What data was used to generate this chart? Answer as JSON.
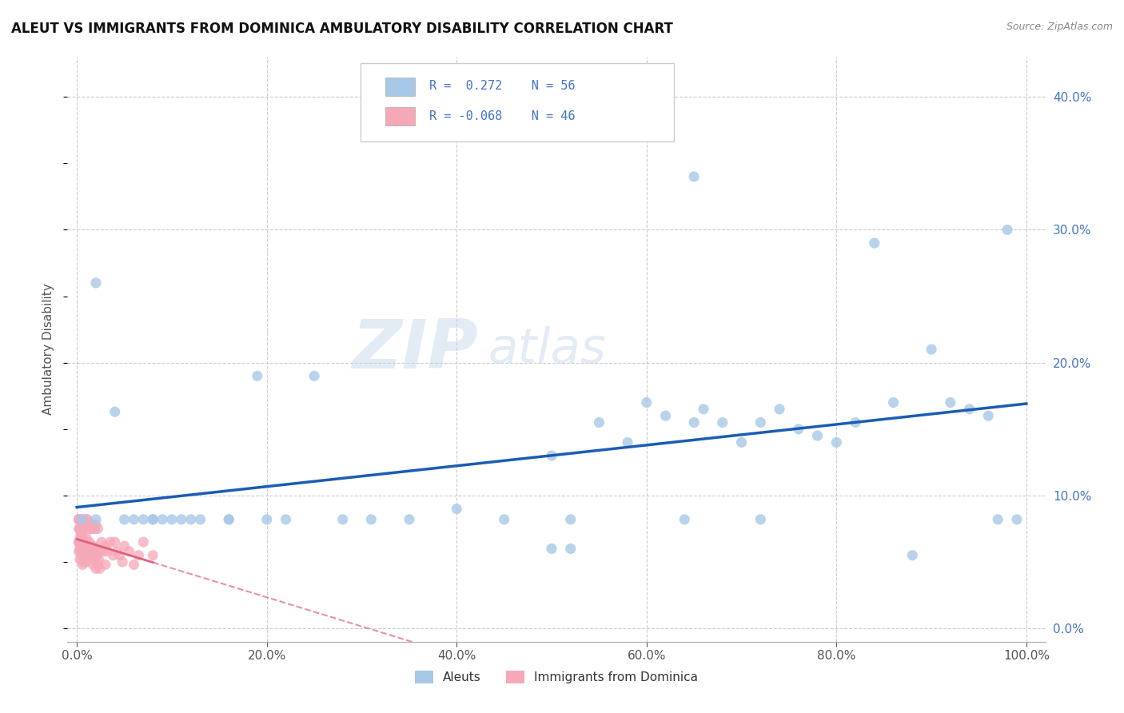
{
  "title": "ALEUT VS IMMIGRANTS FROM DOMINICA AMBULATORY DISABILITY CORRELATION CHART",
  "source": "Source: ZipAtlas.com",
  "xlabel": "",
  "ylabel": "Ambulatory Disability",
  "xlim": [
    -0.01,
    1.02
  ],
  "ylim": [
    -0.01,
    0.43
  ],
  "background_color": "#ffffff",
  "grid_color": "#cccccc",
  "aleut_color": "#a8c8e8",
  "aleut_line_color": "#1a5cb5",
  "dominica_color": "#f5a8b8",
  "dominica_line_color": "#e06080",
  "legend_R1": "0.272",
  "legend_N1": "56",
  "legend_R2": "-0.068",
  "legend_N2": "46",
  "aleut_x": [
    0.005,
    0.02,
    0.04,
    0.06,
    0.07,
    0.08,
    0.09,
    0.1,
    0.11,
    0.13,
    0.16,
    0.19,
    0.22,
    0.25,
    0.28,
    0.31,
    0.35,
    0.4,
    0.45,
    0.5,
    0.52,
    0.55,
    0.58,
    0.6,
    0.62,
    0.64,
    0.65,
    0.66,
    0.68,
    0.7,
    0.72,
    0.74,
    0.76,
    0.78,
    0.8,
    0.82,
    0.84,
    0.86,
    0.88,
    0.9,
    0.92,
    0.94,
    0.96,
    0.97,
    0.98,
    0.99,
    0.02,
    0.05,
    0.08,
    0.12,
    0.16,
    0.2,
    0.5,
    0.52,
    0.65,
    0.72
  ],
  "aleut_y": [
    0.082,
    0.26,
    0.163,
    0.082,
    0.082,
    0.082,
    0.082,
    0.082,
    0.082,
    0.082,
    0.082,
    0.19,
    0.082,
    0.19,
    0.082,
    0.082,
    0.082,
    0.09,
    0.082,
    0.13,
    0.082,
    0.155,
    0.14,
    0.17,
    0.16,
    0.082,
    0.155,
    0.165,
    0.155,
    0.14,
    0.155,
    0.165,
    0.15,
    0.145,
    0.14,
    0.155,
    0.29,
    0.17,
    0.055,
    0.21,
    0.17,
    0.165,
    0.16,
    0.082,
    0.3,
    0.082,
    0.082,
    0.082,
    0.082,
    0.082,
    0.082,
    0.082,
    0.06,
    0.06,
    0.34,
    0.082
  ],
  "dominica_x": [
    0.002,
    0.002,
    0.002,
    0.004,
    0.005,
    0.005,
    0.006,
    0.007,
    0.008,
    0.008,
    0.009,
    0.01,
    0.01,
    0.011,
    0.012,
    0.012,
    0.013,
    0.014,
    0.015,
    0.015,
    0.016,
    0.017,
    0.018,
    0.018,
    0.019,
    0.02,
    0.02,
    0.022,
    0.024,
    0.026,
    0.028,
    0.03,
    0.03,
    0.032,
    0.035,
    0.038,
    0.04,
    0.042,
    0.045,
    0.048,
    0.05,
    0.055,
    0.06,
    0.065,
    0.07,
    0.08
  ],
  "dominica_y": [
    0.082,
    0.082,
    0.065,
    0.082,
    0.082,
    0.065,
    0.075,
    0.065,
    0.082,
    0.06,
    0.078,
    0.082,
    0.065,
    0.082,
    0.078,
    0.062,
    0.075,
    0.058,
    0.075,
    0.06,
    0.078,
    0.062,
    0.075,
    0.058,
    0.075,
    0.078,
    0.06,
    0.075,
    0.058,
    0.065,
    0.058,
    0.062,
    0.048,
    0.058,
    0.065,
    0.055,
    0.065,
    0.058,
    0.055,
    0.05,
    0.062,
    0.058,
    0.048,
    0.055,
    0.065,
    0.055
  ],
  "dominica_extra_x": [
    0.002,
    0.002,
    0.003,
    0.003,
    0.004,
    0.005,
    0.005,
    0.006,
    0.007,
    0.007,
    0.008,
    0.009,
    0.01,
    0.01,
    0.011,
    0.012,
    0.013,
    0.014,
    0.015,
    0.016,
    0.017,
    0.018,
    0.019,
    0.02,
    0.021,
    0.022,
    0.023,
    0.024,
    0.002,
    0.003,
    0.003,
    0.004,
    0.005,
    0.005,
    0.006,
    0.002,
    0.003,
    0.004,
    0.005,
    0.006
  ],
  "dominica_extra_y": [
    0.082,
    0.065,
    0.075,
    0.058,
    0.072,
    0.065,
    0.055,
    0.068,
    0.062,
    0.05,
    0.058,
    0.055,
    0.068,
    0.05,
    0.062,
    0.055,
    0.065,
    0.052,
    0.06,
    0.058,
    0.048,
    0.055,
    0.052,
    0.045,
    0.055,
    0.048,
    0.052,
    0.045,
    0.075,
    0.068,
    0.062,
    0.075,
    0.068,
    0.058,
    0.072,
    0.058,
    0.052,
    0.065,
    0.06,
    0.048
  ],
  "watermark_zip": "ZIP",
  "watermark_atlas": "atlas",
  "yticks": [
    0.0,
    0.1,
    0.2,
    0.3,
    0.4
  ],
  "ytick_labels_right": [
    "0.0%",
    "10.0%",
    "20.0%",
    "30.0%",
    "40.0%"
  ],
  "xticks": [
    0.0,
    0.2,
    0.4,
    0.6,
    0.8,
    1.0
  ],
  "xtick_labels": [
    "0.0%",
    "20.0%",
    "40.0%",
    "60.0%",
    "80.0%",
    "100.0%"
  ]
}
